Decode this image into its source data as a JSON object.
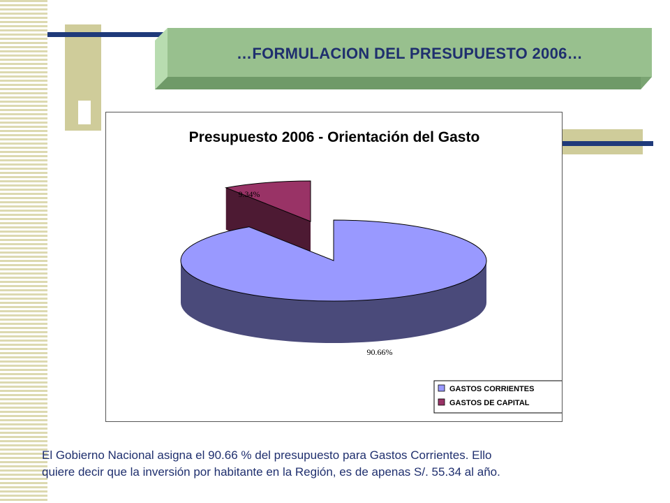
{
  "slide": {
    "banner_title": "…FORMULACION DEL PRESUPUESTO 2006…",
    "caption_line1": "El Gobierno Nacional asigna el 90.66 % del presupuesto para Gastos Corrientes. Ello",
    "caption_line2": "quiere decir que la inversión por habitante en la Región, es de apenas S/. 55.34 al año."
  },
  "colors": {
    "accent_green": "#98c08e",
    "accent_khaki": "#cfcc9a",
    "accent_navy": "#1f3a7a"
  },
  "chart_data": {
    "type": "pie",
    "title": "Presupuesto 2006 - Orientación del Gasto",
    "categories": [
      "GASTOS CORRIENTES",
      "GASTOS DE CAPITAL"
    ],
    "values": [
      90.66,
      9.34
    ],
    "data_labels": [
      "90.66%",
      "9.34%"
    ],
    "colors": [
      "#9999ff",
      "#993366"
    ],
    "legend_position": "bottom-right",
    "style": "3d-exploded"
  }
}
